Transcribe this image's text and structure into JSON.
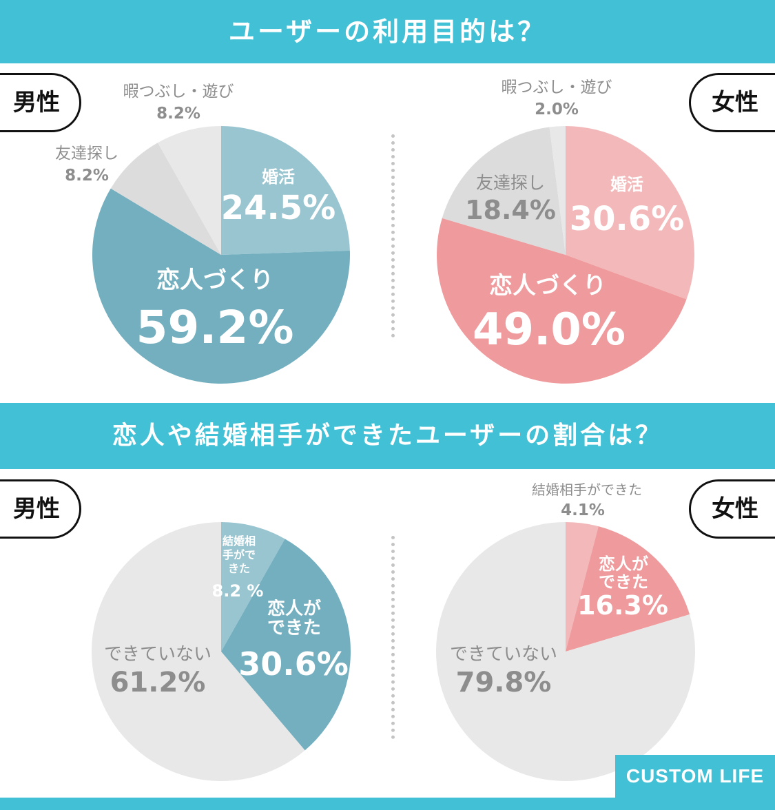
{
  "sections": [
    {
      "title": "ユーザーの利用目的は？",
      "men_label": "男性",
      "women_label": "女性"
    },
    {
      "title": "恋人や結婚相手ができたユーザーの割合は？",
      "men_label": "男性",
      "women_label": "女性"
    }
  ],
  "logo": "CUSTOM LIFE",
  "colors": {
    "banner": "#41c0d6",
    "men_dark": "#73afbf",
    "men_light": "#99c5d0",
    "women_dark": "#ef9a9c",
    "women_light": "#f3b9ba",
    "gray_slice": "#dcdcdc",
    "gray_light": "#e8e8e8"
  },
  "chart_data": [
    {
      "type": "pie",
      "title": "男性",
      "slices": [
        {
          "label": "婚活",
          "value": 24.5,
          "display": "24.5%"
        },
        {
          "label": "恋人づくり",
          "value": 59.2,
          "display": "59.2%"
        },
        {
          "label": "友達探し",
          "value": 8.2,
          "display": "8.2%"
        },
        {
          "label": "暇つぶし・遊び",
          "value": 8.2,
          "display": "8.2%"
        }
      ]
    },
    {
      "type": "pie",
      "title": "女性",
      "slices": [
        {
          "label": "婚活",
          "value": 30.6,
          "display": "30.6%"
        },
        {
          "label": "恋人づくり",
          "value": 49.0,
          "display": "49.0%"
        },
        {
          "label": "友達探し",
          "value": 18.4,
          "display": "18.4%"
        },
        {
          "label": "暇つぶし・遊び",
          "value": 2.0,
          "display": "2.0%"
        }
      ]
    },
    {
      "type": "pie",
      "title": "男性",
      "slices": [
        {
          "label": "結婚相手ができた",
          "value": 8.2,
          "display": "8.2 %"
        },
        {
          "label": "恋人ができた",
          "value": 30.6,
          "display": "30.6%"
        },
        {
          "label": "できていない",
          "value": 61.2,
          "display": "61.2%"
        }
      ]
    },
    {
      "type": "pie",
      "title": "女性",
      "slices": [
        {
          "label": "結婚相手ができた",
          "value": 4.1,
          "display": "4.1%"
        },
        {
          "label": "恋人ができた",
          "value": 16.3,
          "display": "16.3%"
        },
        {
          "label": "できていない",
          "value": 79.8,
          "display": "79.8%"
        }
      ]
    }
  ]
}
